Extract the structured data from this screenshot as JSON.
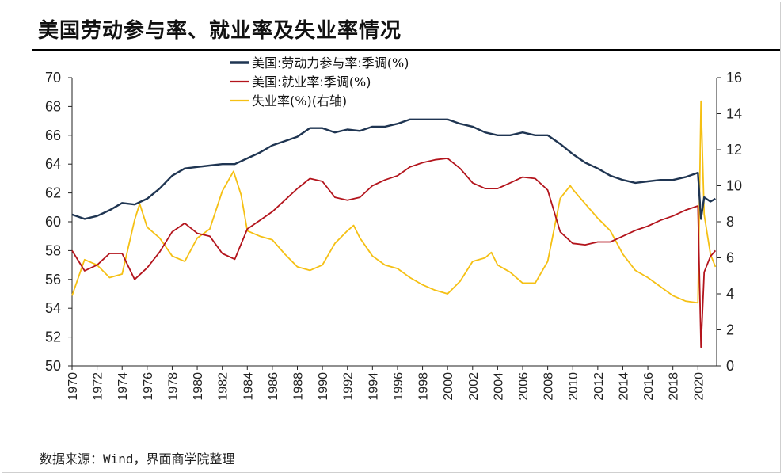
{
  "title": "美国劳动参与率、就业率及失业率情况",
  "source": "数据来源：Wind，界面商学院整理",
  "colors": {
    "lfpr": "#1f3552",
    "emp": "#b3141c",
    "unemp": "#f5c014"
  },
  "chart_data": {
    "type": "line",
    "title": "美国劳动参与率、就业率及失业率情况",
    "xlabel": "",
    "ylabel": "",
    "xlim": [
      1970,
      2021.5
    ],
    "ylim": [
      50,
      70
    ],
    "y2lim": [
      0,
      16
    ],
    "y_ticks": [
      "50",
      "52",
      "54",
      "56",
      "58",
      "60",
      "62",
      "64",
      "66",
      "68",
      "70"
    ],
    "y2_ticks": [
      "0",
      "2",
      "4",
      "6",
      "8",
      "10",
      "12",
      "14",
      "16"
    ],
    "x_ticks": [
      "1970",
      "1972",
      "1974",
      "1976",
      "1978",
      "1980",
      "1982",
      "1984",
      "1986",
      "1988",
      "1990",
      "1992",
      "1994",
      "1996",
      "1998",
      "2000",
      "2002",
      "2004",
      "2006",
      "2008",
      "2010",
      "2012",
      "2014",
      "2016",
      "2018",
      "2020"
    ],
    "legend": [
      "美国:劳动力参与率:季调(%)",
      "美国:就业率:季调(%)",
      "失业率(%)(右轴)"
    ],
    "series": [
      {
        "name": "美国:劳动力参与率:季调(%)",
        "axis": "left",
        "color": "#1f3552",
        "x": [
          1970,
          1971,
          1972,
          1973,
          1974,
          1975,
          1976,
          1977,
          1978,
          1979,
          1980,
          1981,
          1982,
          1983,
          1984,
          1985,
          1986,
          1987,
          1988,
          1989,
          1990,
          1991,
          1992,
          1993,
          1994,
          1995,
          1996,
          1997,
          1998,
          1999,
          2000,
          2001,
          2002,
          2003,
          2004,
          2005,
          2006,
          2007,
          2008,
          2009,
          2010,
          2011,
          2012,
          2013,
          2014,
          2015,
          2016,
          2017,
          2018,
          2019,
          2020.0,
          2020.25,
          2020.5,
          2021,
          2021.4
        ],
        "values": [
          60.5,
          60.2,
          60.4,
          60.8,
          61.3,
          61.2,
          61.6,
          62.3,
          63.2,
          63.7,
          63.8,
          63.9,
          64.0,
          64.0,
          64.4,
          64.8,
          65.3,
          65.6,
          65.9,
          66.5,
          66.5,
          66.2,
          66.4,
          66.3,
          66.6,
          66.6,
          66.8,
          67.1,
          67.1,
          67.1,
          67.1,
          66.8,
          66.6,
          66.2,
          66.0,
          66.0,
          66.2,
          66.0,
          66.0,
          65.4,
          64.7,
          64.1,
          63.7,
          63.2,
          62.9,
          62.7,
          62.8,
          62.9,
          62.9,
          63.1,
          63.4,
          60.2,
          61.7,
          61.4,
          61.6
        ]
      },
      {
        "name": "美国:就业率:季调(%)",
        "axis": "left",
        "color": "#b3141c",
        "x": [
          1970,
          1971,
          1972,
          1973,
          1974,
          1975,
          1976,
          1977,
          1978,
          1979,
          1980,
          1981,
          1982,
          1983,
          1984,
          1985,
          1986,
          1987,
          1988,
          1989,
          1990,
          1991,
          1992,
          1993,
          1994,
          1995,
          1996,
          1997,
          1998,
          1999,
          2000,
          2001,
          2002,
          2003,
          2004,
          2005,
          2006,
          2007,
          2008,
          2009,
          2010,
          2011,
          2012,
          2013,
          2014,
          2015,
          2016,
          2017,
          2018,
          2019,
          2020.0,
          2020.25,
          2020.5,
          2021,
          2021.4
        ],
        "values": [
          58.0,
          56.6,
          57.0,
          57.8,
          57.8,
          56.0,
          56.8,
          57.9,
          59.3,
          59.9,
          59.2,
          59.0,
          57.8,
          57.4,
          59.5,
          60.1,
          60.7,
          61.5,
          62.3,
          63.0,
          62.8,
          61.7,
          61.5,
          61.7,
          62.5,
          62.9,
          63.2,
          63.8,
          64.1,
          64.3,
          64.4,
          63.7,
          62.7,
          62.3,
          62.3,
          62.7,
          63.1,
          63.0,
          62.2,
          59.3,
          58.5,
          58.4,
          58.6,
          58.6,
          59.0,
          59.4,
          59.7,
          60.1,
          60.4,
          60.8,
          61.1,
          51.3,
          56.5,
          57.6,
          58.0
        ]
      },
      {
        "name": "失业率(%)(右轴)",
        "axis": "right",
        "color": "#f5c014",
        "x": [
          1970,
          1971,
          1972,
          1973,
          1974,
          1975,
          1975.4,
          1976,
          1977,
          1978,
          1979,
          1980,
          1981,
          1982,
          1982.9,
          1983.5,
          1984,
          1985,
          1986,
          1987,
          1988,
          1989,
          1990,
          1991,
          1992,
          1992.5,
          1993,
          1994,
          1995,
          1996,
          1997,
          1998,
          1999,
          2000,
          2001,
          2002,
          2003,
          2003.5,
          2004,
          2005,
          2006,
          2007,
          2008,
          2009,
          2009.8,
          2010,
          2011,
          2012,
          2013,
          2014,
          2015,
          2016,
          2017,
          2018,
          2019,
          2020.0,
          2020.25,
          2020.5,
          2021,
          2021.4
        ],
        "values": [
          3.9,
          5.9,
          5.6,
          4.9,
          5.1,
          8.1,
          9.0,
          7.7,
          7.1,
          6.1,
          5.8,
          7.1,
          7.6,
          9.7,
          10.8,
          9.5,
          7.5,
          7.2,
          7.0,
          6.2,
          5.5,
          5.3,
          5.6,
          6.8,
          7.5,
          7.8,
          7.1,
          6.1,
          5.6,
          5.4,
          4.9,
          4.5,
          4.2,
          4.0,
          4.7,
          5.8,
          6.0,
          6.3,
          5.6,
          5.2,
          4.6,
          4.6,
          5.8,
          9.3,
          10.0,
          9.8,
          9.0,
          8.2,
          7.5,
          6.2,
          5.3,
          4.9,
          4.4,
          3.9,
          3.6,
          3.5,
          14.7,
          8.4,
          6.2,
          5.5
        ]
      }
    ]
  }
}
